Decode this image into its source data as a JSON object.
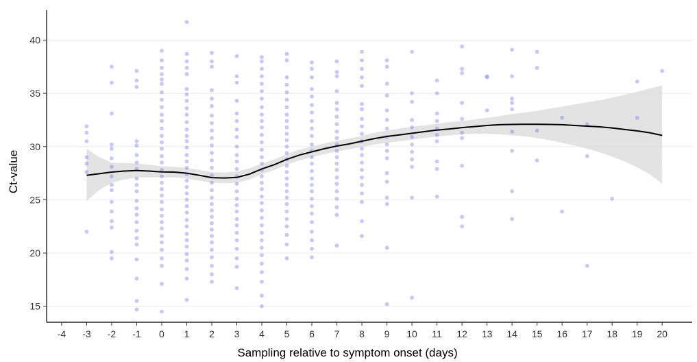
{
  "chart_data": {
    "type": "scatter",
    "xlabel": "Sampling relative to symptom onset (days)",
    "ylabel": "Ct-value",
    "xlim": [
      -4.6,
      21.2
    ],
    "ylim": [
      13.5,
      42.8
    ],
    "x_ticks": [
      -4,
      -3,
      -2,
      -1,
      0,
      1,
      2,
      3,
      4,
      5,
      6,
      7,
      8,
      9,
      10,
      11,
      12,
      13,
      14,
      15,
      16,
      17,
      18,
      19,
      20
    ],
    "x_tick_labels": [
      "-4",
      "-3",
      "-2",
      "-1",
      "0",
      "1",
      "2",
      "3",
      "4",
      "5",
      "6",
      "7",
      "8",
      "9",
      "10",
      "11",
      "12",
      "13",
      "14",
      "15",
      "16",
      "17",
      "18",
      "19",
      "20"
    ],
    "y_ticks": [
      15,
      20,
      25,
      30,
      35,
      40
    ],
    "y_tick_labels": [
      "15",
      "20",
      "25",
      "30",
      "35",
      "40"
    ],
    "grid": "horizontal",
    "point_color": "#6b6bf0",
    "smooth_color": "#000000",
    "band_color": "#d9d9d9",
    "points_by_day": [
      {
        "day": -3,
        "ct": [
          31.9,
          31.3,
          30.5,
          29.0,
          28.4,
          27.6,
          22.0
        ]
      },
      {
        "day": -2,
        "ct": [
          37.5,
          36.0,
          33.1,
          30.2,
          29.8,
          28.9,
          28.1,
          27.2,
          26.4,
          25.9,
          24.8,
          23.9,
          23.0,
          22.4,
          20.1,
          19.5
        ]
      },
      {
        "day": -1,
        "ct": [
          37.1,
          36.2,
          35.6,
          30.5,
          30.1,
          29.2,
          28.5,
          27.9,
          27.0,
          26.4,
          25.8,
          24.9,
          24.2,
          23.6,
          22.9,
          22.1,
          21.4,
          20.8,
          19.4,
          17.6,
          15.5,
          14.7
        ]
      },
      {
        "day": 0,
        "ct": [
          39.0,
          38.1,
          37.4,
          36.8,
          36.3,
          35.9,
          35.1,
          34.4,
          33.7,
          33.0,
          32.4,
          31.7,
          31.0,
          30.4,
          29.8,
          29.1,
          28.5,
          27.8,
          27.2,
          26.6,
          26.0,
          25.4,
          24.8,
          24.1,
          23.5,
          22.9,
          22.3,
          21.6,
          21.0,
          20.3,
          19.5,
          18.8,
          17.1,
          14.5
        ]
      },
      {
        "day": 1,
        "ct": [
          41.7,
          38.7,
          38.0,
          37.4,
          36.8,
          35.4,
          34.9,
          34.3,
          33.6,
          33.0,
          32.3,
          31.6,
          31.0,
          30.5,
          29.9,
          29.2,
          28.6,
          28.0,
          27.4,
          26.8,
          26.2,
          25.6,
          25.0,
          24.4,
          23.8,
          23.1,
          22.5,
          21.8,
          21.2,
          20.6,
          19.9,
          19.3,
          18.5,
          17.6,
          15.6
        ]
      },
      {
        "day": 2,
        "ct": [
          38.8,
          38.0,
          37.5,
          35.3,
          34.5,
          33.8,
          32.9,
          32.2,
          31.5,
          30.8,
          30.1,
          29.4,
          28.7,
          28.0,
          27.3,
          26.6,
          25.9,
          25.2,
          24.6,
          24.0,
          23.4,
          22.8,
          22.2,
          21.6,
          21.0,
          20.3,
          19.6,
          18.8,
          18.0,
          17.3
        ]
      },
      {
        "day": 3,
        "ct": [
          38.5,
          36.6,
          36.0,
          34.3,
          33.1,
          32.4,
          31.6,
          30.9,
          30.0,
          29.2,
          28.6,
          27.9,
          27.2,
          26.5,
          25.8,
          25.1,
          24.5,
          23.9,
          23.2,
          22.6,
          21.9,
          21.2,
          20.4,
          19.5,
          18.7,
          16.7
        ]
      },
      {
        "day": 4,
        "ct": [
          38.4,
          38.0,
          37.3,
          36.6,
          35.9,
          35.2,
          34.5,
          33.7,
          33.0,
          32.4,
          31.8,
          31.1,
          30.4,
          29.7,
          29.0,
          28.4,
          27.8,
          27.2,
          26.6,
          26.0,
          25.3,
          24.7,
          24.0,
          23.3,
          22.6,
          21.9,
          21.2,
          20.5,
          19.8,
          19.0,
          18.2,
          17.3,
          16.0,
          15.0
        ]
      },
      {
        "day": 5,
        "ct": [
          38.7,
          38.1,
          36.5,
          35.8,
          35.1,
          34.4,
          33.7,
          33.0,
          32.4,
          31.8,
          31.2,
          30.6,
          30.0,
          29.4,
          28.8,
          28.2,
          27.6,
          27.0,
          26.4,
          25.8,
          25.2,
          24.6,
          23.9,
          23.2,
          22.5,
          21.7,
          20.8,
          19.5
        ]
      },
      {
        "day": 6,
        "ct": [
          37.9,
          37.3,
          36.5,
          35.4,
          34.7,
          33.9,
          33.2,
          32.4,
          31.7,
          31.0,
          30.2,
          29.6,
          29.0,
          28.4,
          27.7,
          27.0,
          26.4,
          25.8,
          25.1,
          24.4,
          23.7,
          22.9,
          22.0,
          21.2,
          20.4,
          19.6
        ]
      },
      {
        "day": 7,
        "ct": [
          38.0,
          37.0,
          36.6,
          35.2,
          34.1,
          33.5,
          32.8,
          32.1,
          31.4,
          30.8,
          30.2,
          29.6,
          29.0,
          28.4,
          27.8,
          27.1,
          26.5,
          25.8,
          25.1,
          24.3,
          23.6,
          20.7
        ]
      },
      {
        "day": 8,
        "ct": [
          38.9,
          38.1,
          37.3,
          36.5,
          35.7,
          34.0,
          33.5,
          32.6,
          31.9,
          31.2,
          30.5,
          29.8,
          29.2,
          28.5,
          27.8,
          27.1,
          26.4,
          25.6,
          24.8,
          23.0,
          21.6
        ]
      },
      {
        "day": 9,
        "ct": [
          38.1,
          37.5,
          35.9,
          34.8,
          33.4,
          32.5,
          31.7,
          30.9,
          30.2,
          29.6,
          28.9,
          27.5,
          26.7,
          25.2,
          24.6,
          20.5,
          15.2
        ]
      },
      {
        "day": 10,
        "ct": [
          38.9,
          35.0,
          34.2,
          32.5,
          31.8,
          30.9,
          30.2,
          29.5,
          28.8,
          28.1,
          25.2,
          15.8
        ]
      },
      {
        "day": 11,
        "ct": [
          36.2,
          35.0,
          33.1,
          32.4,
          31.7,
          31.1,
          30.5,
          28.6,
          27.9,
          25.3
        ]
      },
      {
        "day": 12,
        "ct": [
          39.4,
          37.3,
          36.9,
          34.1,
          32.6,
          31.3,
          30.8,
          28.2,
          23.4,
          22.5
        ]
      },
      {
        "day": 13,
        "ct": [
          36.6,
          36.5,
          33.4
        ]
      },
      {
        "day": 14,
        "ct": [
          39.1,
          36.6,
          34.5,
          34.1,
          33.5,
          31.4,
          29.6,
          25.8,
          23.2
        ]
      },
      {
        "day": 15,
        "ct": [
          38.9,
          37.4,
          31.5,
          28.7
        ]
      },
      {
        "day": 16,
        "ct": [
          32.7,
          23.9
        ]
      },
      {
        "day": 17,
        "ct": [
          32.1,
          29.1,
          18.8
        ]
      },
      {
        "day": 18,
        "ct": [
          25.1
        ]
      },
      {
        "day": 19,
        "ct": [
          36.1,
          32.7
        ]
      },
      {
        "day": 20,
        "ct": [
          37.1
        ]
      }
    ],
    "smooth": {
      "x": [
        -3,
        -2.5,
        -2,
        -1.5,
        -1,
        -0.5,
        0,
        0.5,
        1,
        1.5,
        2,
        2.5,
        3,
        3.5,
        4,
        4.5,
        5,
        5.5,
        6,
        6.5,
        7,
        7.5,
        8,
        8.5,
        9,
        9.5,
        10,
        10.5,
        11,
        11.5,
        12,
        12.5,
        13,
        13.5,
        14,
        14.5,
        15,
        15.5,
        16,
        16.5,
        17,
        17.5,
        18,
        18.5,
        19,
        19.5,
        20
      ],
      "y": [
        27.3,
        27.45,
        27.6,
        27.7,
        27.75,
        27.7,
        27.62,
        27.6,
        27.5,
        27.3,
        27.08,
        27.05,
        27.1,
        27.4,
        27.9,
        28.3,
        28.8,
        29.2,
        29.5,
        29.8,
        30.05,
        30.25,
        30.5,
        30.75,
        30.95,
        31.1,
        31.25,
        31.4,
        31.55,
        31.65,
        31.78,
        31.88,
        31.98,
        32.05,
        32.08,
        32.1,
        32.1,
        32.08,
        32.05,
        31.98,
        31.92,
        31.85,
        31.75,
        31.6,
        31.47,
        31.3,
        31.05
      ],
      "lower": [
        24.9,
        25.9,
        26.6,
        26.9,
        27.1,
        27.1,
        27.1,
        27.1,
        27.0,
        26.8,
        26.6,
        26.55,
        26.6,
        26.9,
        27.4,
        27.8,
        28.3,
        28.7,
        29.0,
        29.3,
        29.55,
        29.75,
        29.95,
        30.2,
        30.35,
        30.5,
        30.65,
        30.8,
        30.95,
        31.05,
        31.15,
        31.2,
        31.2,
        31.15,
        31.05,
        30.95,
        30.8,
        30.6,
        30.35,
        30.1,
        29.8,
        29.45,
        29.05,
        28.6,
        28.05,
        27.4,
        26.5
      ],
      "upper": [
        29.8,
        29.0,
        28.5,
        28.45,
        28.4,
        28.3,
        28.15,
        28.1,
        28.0,
        27.8,
        27.6,
        27.55,
        27.65,
        27.95,
        28.4,
        28.8,
        29.3,
        29.7,
        30.0,
        30.3,
        30.55,
        30.75,
        31.0,
        31.3,
        31.5,
        31.7,
        31.85,
        32.0,
        32.15,
        32.3,
        32.4,
        32.55,
        32.7,
        32.85,
        33.05,
        33.2,
        33.35,
        33.55,
        33.75,
        33.95,
        34.15,
        34.35,
        34.6,
        34.85,
        35.15,
        35.45,
        35.75
      ]
    }
  }
}
